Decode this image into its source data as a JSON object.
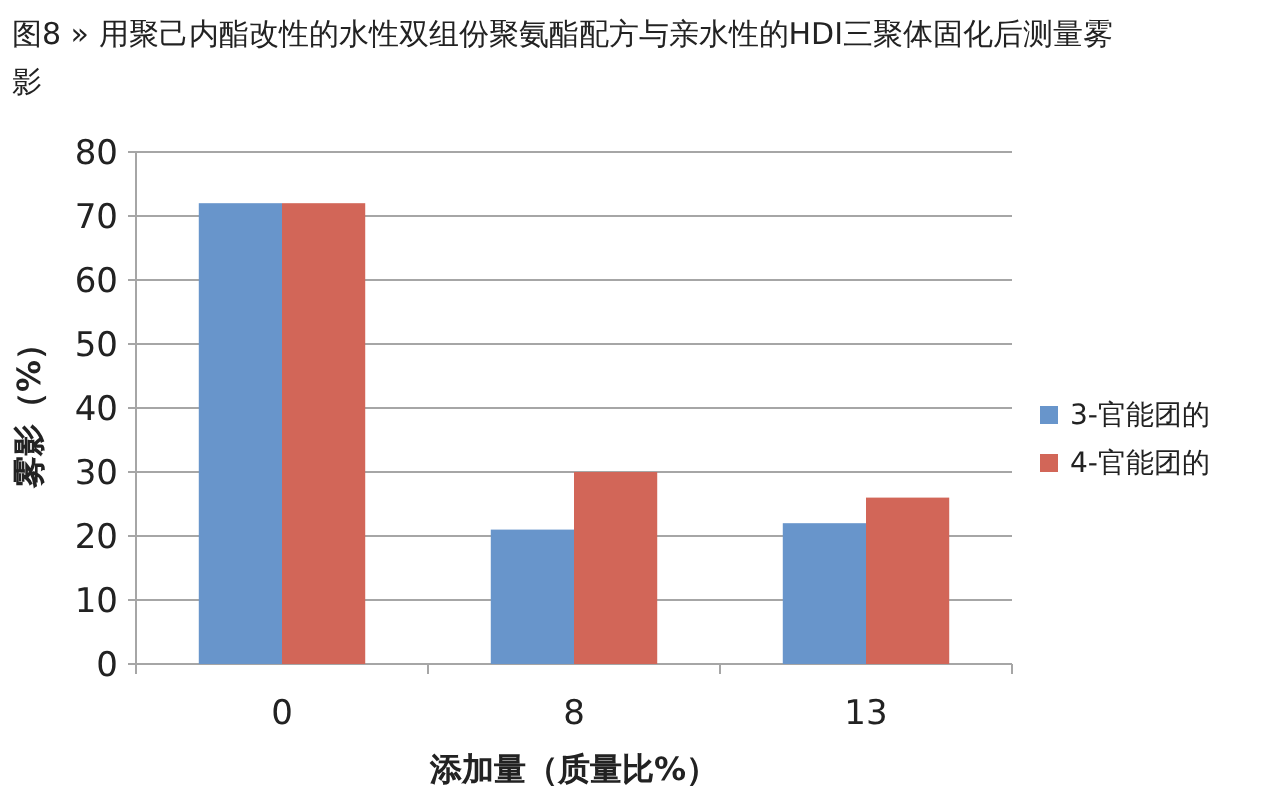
{
  "chart_data": {
    "type": "bar",
    "title": "图8 » 用聚己内酯改性的水性双组份聚氨酯配方与亲水性的HDI三聚体固化后测量雾影",
    "xlabel": "添加量（质量比%）",
    "ylabel": "雾影（%）",
    "categories": [
      "0",
      "8",
      "13"
    ],
    "series": [
      {
        "name": "3-官能团的",
        "color": "#6895cb",
        "values": [
          72,
          21,
          22
        ]
      },
      {
        "name": "4-官能团的",
        "color": "#d26658",
        "values": [
          72,
          30,
          26
        ]
      }
    ],
    "ylim": [
      0,
      80
    ],
    "yticks": [
      0,
      10,
      20,
      30,
      40,
      50,
      60,
      70,
      80
    ],
    "grid": "y",
    "legend": "right"
  }
}
